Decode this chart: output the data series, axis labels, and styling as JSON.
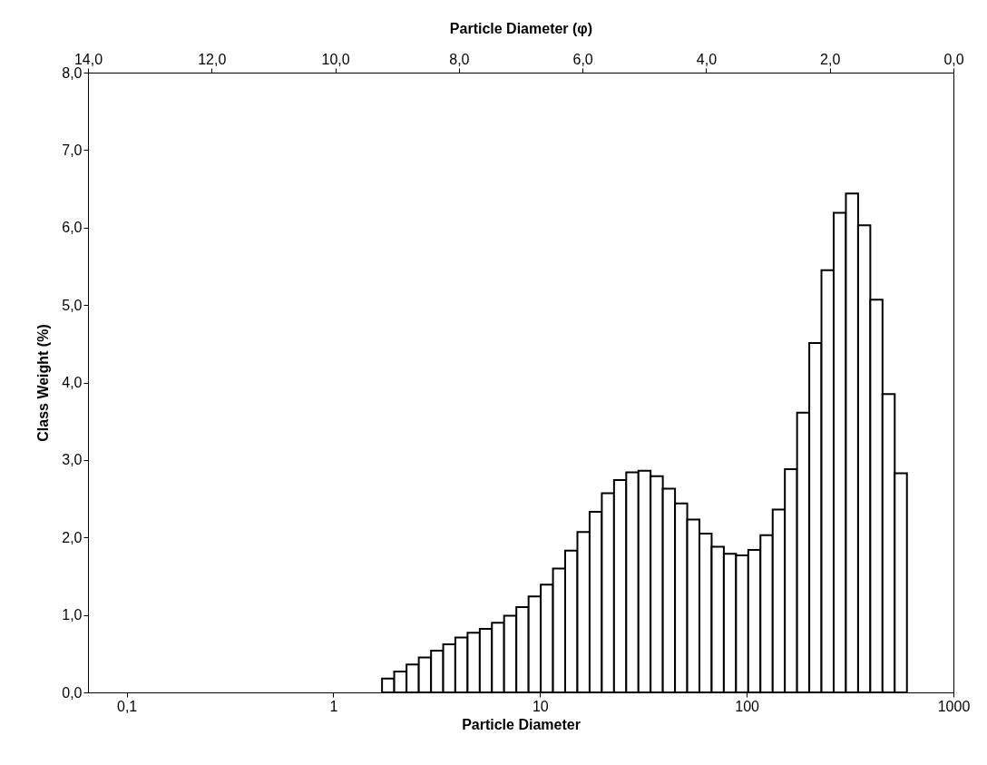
{
  "chart_data": {
    "type": "histogram",
    "xlabel": "Particle Diameter",
    "x2label": "Particle Diameter (φ)",
    "ylabel": "Class Weight (%)",
    "bins": [
      1.72,
      1.97,
      2.26,
      2.59,
      2.97,
      3.4,
      3.89,
      4.46,
      5.11,
      5.85,
      6.7,
      7.68,
      8.8,
      10.08,
      11.55,
      13.23,
      15.16,
      17.37,
      19.9,
      22.8,
      26.12,
      29.92,
      34.27,
      39.26,
      44.98,
      51.53,
      59.03,
      67.63,
      77.48,
      88.78,
      101.7,
      116.5,
      133.5,
      152.9,
      175.2,
      200.7,
      229.9,
      263.4,
      301.8,
      345.8,
      396.1,
      453.8,
      519.9,
      595.7
    ],
    "values": [
      0.18,
      0.27,
      0.36,
      0.45,
      0.54,
      0.62,
      0.71,
      0.77,
      0.82,
      0.9,
      0.99,
      1.1,
      1.24,
      1.39,
      1.6,
      1.83,
      2.07,
      2.33,
      2.57,
      2.74,
      2.84,
      2.86,
      2.79,
      2.63,
      2.44,
      2.23,
      2.05,
      1.88,
      1.79,
      1.77,
      1.84,
      2.03,
      2.36,
      2.88,
      3.61,
      4.51,
      5.45,
      6.19,
      6.44,
      6.03,
      5.07,
      3.85,
      2.83
    ],
    "color": "#ffffff",
    "log": "x",
    "grid": false,
    "legend": false,
    "xlim": [
      0.065,
      1000
    ],
    "xticks": [
      {
        "value": 0.1,
        "label": "0,1"
      },
      1,
      10,
      100,
      1000
    ],
    "x2lim": [
      14,
      0
    ],
    "x2ticks": [
      {
        "value": 14,
        "label": "14,0"
      },
      {
        "value": 12,
        "label": "12,0"
      },
      {
        "value": 10,
        "label": "10,0"
      },
      {
        "value": 8,
        "label": "8,0"
      },
      {
        "value": 6,
        "label": "6,0"
      },
      {
        "value": 4,
        "label": "4,0"
      },
      {
        "value": 2,
        "label": "2,0"
      },
      {
        "value": 0,
        "label": "0,0"
      }
    ],
    "ylim": [
      0,
      8
    ],
    "yticks": [
      {
        "value": 0,
        "label": "0,0"
      },
      {
        "value": 1,
        "label": "1,0"
      },
      {
        "value": 2,
        "label": "2,0"
      },
      {
        "value": 3,
        "label": "3,0"
      },
      {
        "value": 4,
        "label": "4,0"
      },
      {
        "value": 5,
        "label": "5,0"
      },
      {
        "value": 6,
        "label": "6,0"
      },
      {
        "value": 7,
        "label": "7,0"
      },
      {
        "value": 8,
        "label": "8,0"
      }
    ]
  }
}
